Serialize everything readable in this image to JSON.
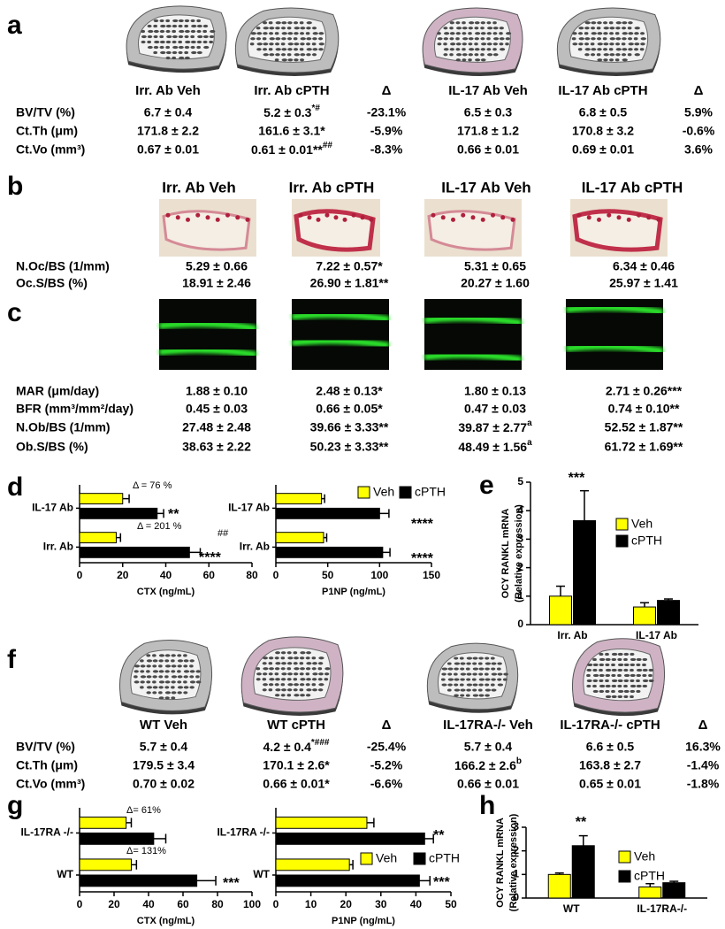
{
  "letters": [
    "a",
    "b",
    "c",
    "d",
    "e",
    "f",
    "g",
    "h"
  ],
  "table_a": {
    "headers": [
      "Irr. Ab Veh",
      "Irr. Ab cPTH",
      "Δ",
      "IL-17 Ab Veh",
      "IL-17 Ab cPTH",
      "Δ"
    ],
    "rows": [
      {
        "label": "BV/TV (%)",
        "cells": [
          "6.7 ± 0.4",
          {
            "text": "5.2 ± 0.3",
            "sup": "*#"
          },
          "-23.1%",
          "6.5 ± 0.3",
          "6.8 ± 0.5",
          "5.9%"
        ]
      },
      {
        "label": "Ct.Th (μm)",
        "cells": [
          "171.8 ± 2.2",
          "161.6 ± 3.1*",
          "-5.9%",
          "171.8 ± 1.2",
          "170.8 ± 3.2",
          "-0.6%"
        ]
      },
      {
        "label": "Ct.Vo (mm³)",
        "cells": [
          "0.67 ± 0.01",
          {
            "text": "0.61 ± 0.01**",
            "sup": "##"
          },
          "-8.3%",
          "0.66 ± 0.01",
          "0.69 ± 0.01",
          "3.6%"
        ]
      }
    ]
  },
  "table_b": {
    "headers": [
      "Irr. Ab Veh",
      "Irr. Ab cPTH",
      "IL-17 Ab Veh",
      "IL-17 Ab cPTH"
    ],
    "rows": [
      {
        "label": "N.Oc/BS (1/mm)",
        "cells": [
          "5.29 ± 0.66",
          "7.22 ± 0.57*",
          "5.31 ± 0.65",
          "6.34 ± 0.46"
        ]
      },
      {
        "label": "Oc.S/BS (%)",
        "cells": [
          "18.91 ± 2.46",
          "26.90 ± 1.81**",
          "20.27 ± 1.60",
          "25.97 ± 1.41"
        ]
      }
    ]
  },
  "table_c": {
    "rows": [
      {
        "label": "MAR (μm/day)",
        "cells": [
          "1.88 ± 0.10",
          "2.48 ± 0.13*",
          "1.80 ± 0.13",
          "2.71 ± 0.26***"
        ]
      },
      {
        "label": "BFR (mm³/mm²/day)",
        "cells": [
          "0.45 ± 0.03",
          "0.66 ± 0.05*",
          "0.47 ± 0.03",
          "0.74 ± 0.10**"
        ]
      },
      {
        "label": "N.Ob/BS (1/mm)",
        "cells": [
          "27.48 ± 2.48",
          "39.66 ± 3.33**",
          {
            "text": "39.87 ± 2.77",
            "sup": "a"
          },
          "52.52 ± 1.87**"
        ]
      },
      {
        "label": "Ob.S/BS  (%)",
        "cells": [
          "38.63 ± 2.22",
          "50.23 ± 3.33**",
          {
            "text": "48.49 ± 1.56",
            "sup": "a"
          },
          "61.72 ± 1.69**"
        ]
      }
    ]
  },
  "table_f": {
    "headers": [
      "WT Veh",
      "WT cPTH",
      "Δ",
      "IL-17RA-/- Veh",
      "IL-17RA-/- cPTH",
      "Δ"
    ],
    "rows": [
      {
        "label": "BV/TV (%)",
        "cells": [
          "5.7 ± 0.4",
          {
            "text": "4.2 ± 0.4",
            "sup": "*###"
          },
          "-25.4%",
          "5.7 ± 0.4",
          "6.6 ± 0.5",
          "16.3%"
        ]
      },
      {
        "label": "Ct.Th (μm)",
        "cells": [
          "179.5 ± 3.4",
          "170.1 ± 2.6*",
          "-5.2%",
          {
            "text": "166.2 ± 2.6",
            "sup": "b"
          },
          "163.8 ± 2.7",
          "-1.4%"
        ]
      },
      {
        "label": "Ct.Vo  (mm³)",
        "cells": [
          "0.70 ± 0.02",
          "0.66 ± 0.01*",
          "-6.6%",
          "0.66 ± 0.01",
          "0.65 ± 0.01",
          "-1.8%"
        ]
      }
    ]
  },
  "chart_data": [
    {
      "type": "hbar",
      "categories": [
        "IL-17 Ab",
        "Irr. Ab"
      ],
      "xlabel": "CTX (ng/mL)",
      "xlim": [
        0,
        80
      ],
      "xticks": [
        0,
        20,
        40,
        60,
        80
      ],
      "legend": false,
      "series": [
        {
          "color": "#ffff00",
          "values": [
            20,
            17
          ],
          "errors": [
            3,
            2
          ]
        },
        {
          "color": "#000000",
          "values": [
            36,
            51
          ],
          "errors": [
            3,
            5
          ]
        }
      ],
      "annotations": [
        "Δ = 76 %",
        "**",
        "Δ = 201 %",
        "##",
        "****"
      ]
    },
    {
      "type": "hbar",
      "categories": [
        "IL-17 Ab",
        "Irr. Ab"
      ],
      "xlabel": "P1NP (ng/mL)",
      "xlim": [
        0,
        150
      ],
      "xticks": [
        0,
        50,
        100,
        150
      ],
      "legend": true,
      "series": [
        {
          "name": "Veh",
          "color": "#ffff00",
          "values": [
            44,
            46
          ],
          "errors": [
            3,
            3
          ]
        },
        {
          "name": "cPTH",
          "color": "#000000",
          "values": [
            100,
            103
          ],
          "errors": [
            9,
            7
          ]
        }
      ],
      "annotations": [
        "****",
        "****"
      ]
    },
    {
      "type": "bar",
      "categories": [
        "Irr. Ab",
        "IL-17 Ab"
      ],
      "ylabel": [
        "OCY RANKL mRNA",
        "(Relative expression)"
      ],
      "ylim": [
        0,
        5
      ],
      "yticks": [
        0,
        1,
        2,
        3,
        4,
        5
      ],
      "legend": true,
      "series": [
        {
          "name": "Veh",
          "color": "#ffff00",
          "values": [
            1.0,
            0.62
          ],
          "errors": [
            0.35,
            0.15
          ]
        },
        {
          "name": "cPTH",
          "color": "#000000",
          "values": [
            3.65,
            0.85
          ],
          "errors": [
            1.05,
            0.05
          ]
        }
      ],
      "annotations": [
        "***"
      ]
    },
    {
      "type": "hbar",
      "categories": [
        "IL-17RA -/-",
        "WT"
      ],
      "xlabel": "CTX (ng/mL)",
      "xlim": [
        0,
        100
      ],
      "xticks": [
        0,
        20,
        40,
        60,
        80,
        100
      ],
      "legend": false,
      "series": [
        {
          "color": "#ffff00",
          "values": [
            27,
            30
          ],
          "errors": [
            3,
            3
          ]
        },
        {
          "color": "#000000",
          "values": [
            43,
            68
          ],
          "errors": [
            7,
            11
          ]
        }
      ],
      "annotations": [
        "Δ= 61%",
        "Δ= 131%",
        "***"
      ]
    },
    {
      "type": "hbar",
      "categories": [
        "IL-17RA -/-",
        "WT"
      ],
      "xlabel": "P1NP (ng/mL)",
      "xlim": [
        0,
        50
      ],
      "xticks": [
        0,
        10,
        20,
        30,
        40,
        50
      ],
      "legend": true,
      "series": [
        {
          "name": "Veh",
          "color": "#ffff00",
          "values": [
            26,
            21
          ],
          "errors": [
            2,
            1
          ]
        },
        {
          "name": "cPTH",
          "color": "#000000",
          "values": [
            42.5,
            41
          ],
          "errors": [
            2.5,
            3
          ]
        }
      ],
      "annotations": [
        "**",
        "***"
      ]
    },
    {
      "type": "bar",
      "categories": [
        "WT",
        "IL-17RA-/-"
      ],
      "ylabel": [
        "OCY RANKL mRNA",
        "(Relative expression)"
      ],
      "ylim": [
        0,
        3
      ],
      "yticks": [
        0,
        1,
        2,
        3
      ],
      "legend": true,
      "series": [
        {
          "name": "Veh",
          "color": "#ffff00",
          "values": [
            1.0,
            0.47
          ],
          "errors": [
            0.06,
            0.14
          ]
        },
        {
          "name": "cPTH",
          "color": "#000000",
          "values": [
            2.22,
            0.65
          ],
          "errors": [
            0.42,
            0.06
          ]
        }
      ],
      "annotations": [
        "**"
      ]
    }
  ]
}
